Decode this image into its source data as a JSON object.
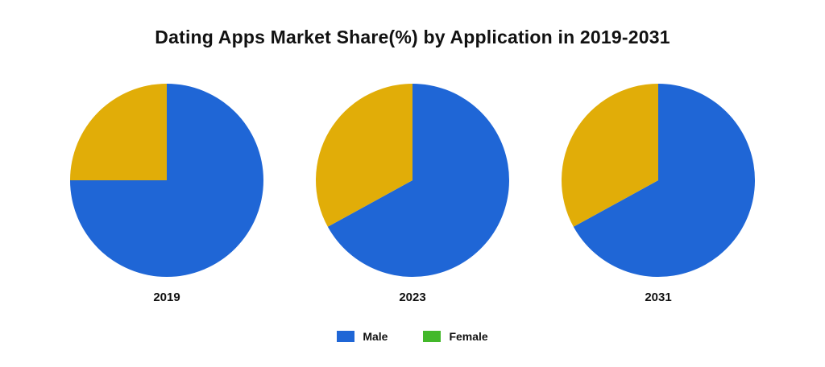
{
  "chart_data": {
    "type": "pie",
    "title": "Dating Apps Market Share(%) by Application in 2019-2031",
    "legend": {
      "placement": "bottom-center",
      "entries": [
        {
          "name": "Male",
          "color": "#1f66d6"
        },
        {
          "name": "Female",
          "color": "#43b82a"
        }
      ]
    },
    "slice_colors": [
      "#1f66d6",
      "#e1ad08"
    ],
    "charts": [
      {
        "label": "2019",
        "slices": [
          {
            "name": "Male",
            "value": 75
          },
          {
            "name": "Female",
            "value": 25
          }
        ]
      },
      {
        "label": "2023",
        "slices": [
          {
            "name": "Male",
            "value": 67
          },
          {
            "name": "Female",
            "value": 33
          }
        ]
      },
      {
        "label": "2031",
        "slices": [
          {
            "name": "Male",
            "value": 67
          },
          {
            "name": "Female",
            "value": 33
          }
        ]
      }
    ]
  }
}
